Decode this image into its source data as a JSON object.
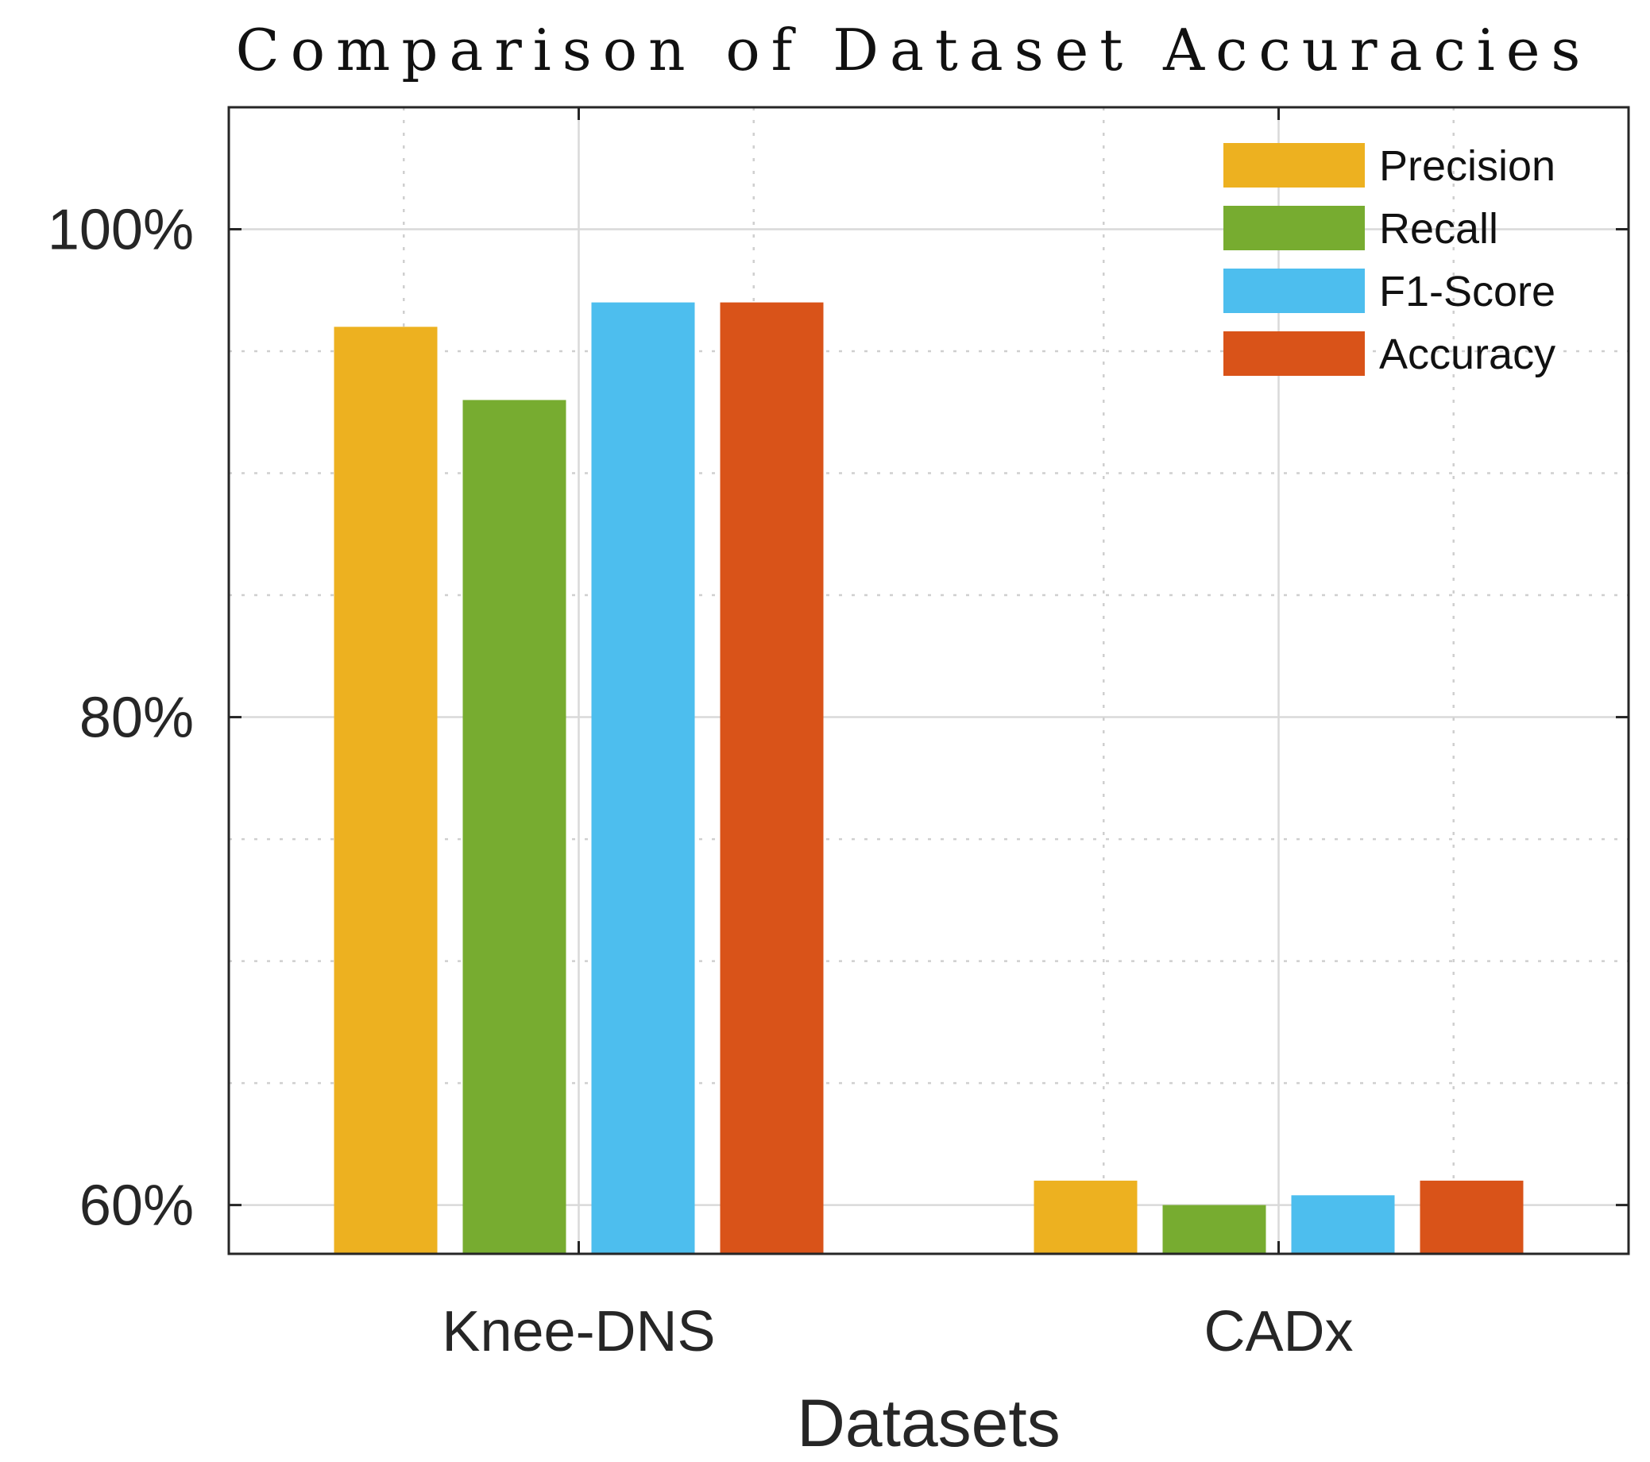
{
  "chart_data": {
    "type": "bar",
    "title": "Comparison of Dataset Accuracies",
    "xlabel": "Datasets",
    "ylabel": "",
    "categories": [
      "Knee-DNS",
      "CADx"
    ],
    "series": [
      {
        "name": "Precision",
        "values": [
          96.0,
          61.0
        ],
        "color": "#EDB120"
      },
      {
        "name": "Recall",
        "values": [
          93.0,
          60.0
        ],
        "color": "#77AC30"
      },
      {
        "name": "F1-Score",
        "values": [
          97.0,
          60.4
        ],
        "color": "#4DBEEE"
      },
      {
        "name": "Accuracy",
        "values": [
          97.0,
          61.0
        ],
        "color": "#D95319"
      }
    ],
    "ylim": [
      58,
      105
    ],
    "yticks": [
      60,
      80,
      100
    ],
    "ytick_labels": [
      "60%",
      "80%",
      "100%"
    ],
    "minor_yticks": [
      65,
      70,
      75,
      85,
      90,
      95
    ],
    "grid": true,
    "legend_position": "top-right"
  }
}
